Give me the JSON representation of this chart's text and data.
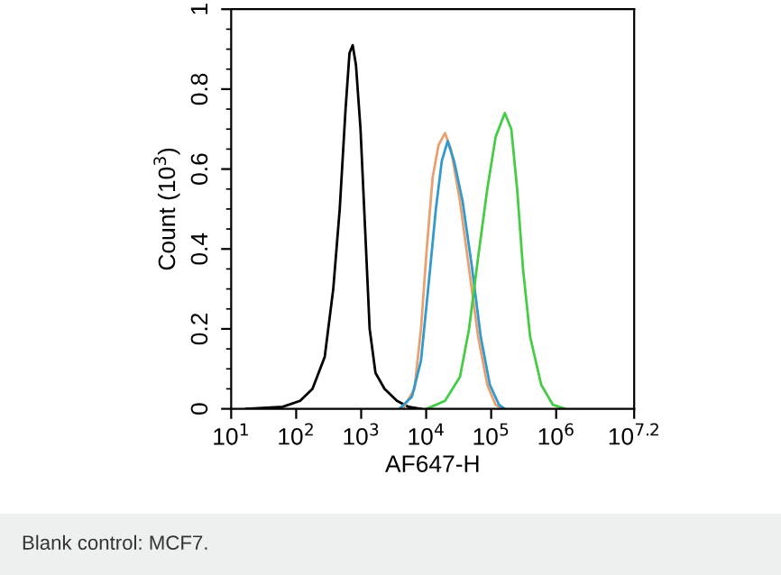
{
  "chart_data": {
    "type": "line",
    "xlabel": "AF647-H",
    "ylabel": "Count (10$^{3}$)",
    "log": "x",
    "xlim": [
      10,
      15850000
    ],
    "ylim": [
      0,
      1
    ],
    "xticks": [
      {
        "value": 10,
        "label": "10$^{1}$"
      },
      {
        "value": 100,
        "label": "10$^{2}$"
      },
      {
        "value": 1000,
        "label": "10$^{3}$"
      },
      {
        "value": 10000,
        "label": "10$^{4}$"
      },
      {
        "value": 100000,
        "label": "10$^{5}$"
      },
      {
        "value": 1000000,
        "label": "10$^{6}$"
      },
      {
        "value": 15850000,
        "label": "10$^{7.2}$"
      }
    ],
    "yticks": [
      0,
      0.2,
      0.4,
      0.6,
      0.8,
      1
    ],
    "grid": false,
    "legend": false,
    "marker": "none",
    "line_style": "solid",
    "series": [
      {
        "color": "#000000",
        "x": [
          17,
          62,
          115,
          178,
          275,
          372,
          468,
          575,
          661,
          741,
          832,
          977,
          1150,
          1350,
          1660,
          2290,
          3550,
          5370,
          8320
        ],
        "values": [
          0,
          0.005,
          0.02,
          0.05,
          0.13,
          0.3,
          0.5,
          0.75,
          0.89,
          0.91,
          0.86,
          0.7,
          0.45,
          0.2,
          0.09,
          0.05,
          0.02,
          0.005,
          0
        ]
      },
      {
        "color": "#e8a070",
        "x": [
          4370,
          6610,
          8320,
          10200,
          12600,
          15500,
          19500,
          24000,
          33100,
          45700,
          63100,
          87100,
          117000,
          148000
        ],
        "values": [
          0,
          0.05,
          0.2,
          0.4,
          0.58,
          0.66,
          0.69,
          0.65,
          0.52,
          0.35,
          0.18,
          0.06,
          0.01,
          0
        ]
      },
      {
        "color": "#3399cc",
        "x": [
          3890,
          6030,
          8320,
          11500,
          14100,
          17400,
          21400,
          26900,
          36300,
          50100,
          69200,
          95500,
          132000,
          162000
        ],
        "values": [
          0,
          0.03,
          0.12,
          0.35,
          0.5,
          0.62,
          0.67,
          0.62,
          0.52,
          0.36,
          0.18,
          0.06,
          0.01,
          0
        ]
      },
      {
        "color": "#44cc44",
        "x": [
          10200,
          19500,
          33100,
          45700,
          63100,
          87100,
          117000,
          162000,
          204000,
          251000,
          309000,
          398000,
          589000,
          891000,
          1380000
        ],
        "values": [
          0,
          0.02,
          0.08,
          0.2,
          0.38,
          0.55,
          0.68,
          0.74,
          0.7,
          0.55,
          0.35,
          0.18,
          0.06,
          0.01,
          0
        ]
      }
    ],
    "annotations": [
      "Blank control: MCF7."
    ]
  }
}
